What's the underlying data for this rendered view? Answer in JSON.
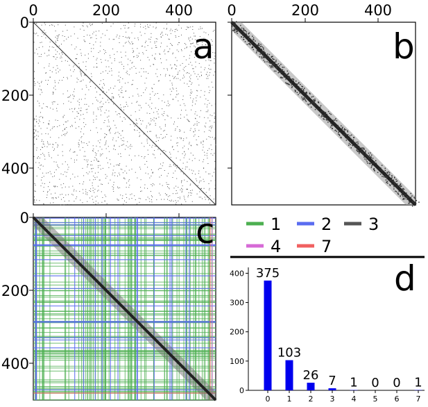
{
  "chart_data": [
    {
      "type": "heatmap",
      "panel_label": "a",
      "description": "sparse matrix, scattered points plus main diagonal",
      "size": 500,
      "xticks": [
        "0",
        "200",
        "400"
      ],
      "yticks": [
        "0",
        "200",
        "400"
      ],
      "xlim": [
        0,
        500
      ],
      "ylim": [
        500,
        0
      ]
    },
    {
      "type": "heatmap",
      "panel_label": "b",
      "description": "banded matrix, dense band along main diagonal",
      "size": 500,
      "xticks": [
        "0",
        "200",
        "400"
      ],
      "yticks": [],
      "xlim": [
        0,
        500
      ],
      "ylim": [
        500,
        0
      ]
    },
    {
      "type": "heatmap",
      "panel_label": "c",
      "size": 500,
      "yticks": [
        "0",
        "200",
        "400"
      ],
      "xlim": [
        0,
        500
      ],
      "ylim": [
        500,
        0
      ],
      "legend": [
        {
          "name": "1",
          "color": "#4caf50"
        },
        {
          "name": "2",
          "color": "#5a6cf0"
        },
        {
          "name": "3",
          "color": "#555555"
        },
        {
          "name": "4",
          "color": "#d66ad6"
        },
        {
          "name": "7",
          "color": "#f06060"
        }
      ]
    },
    {
      "type": "bar",
      "panel_label": "d",
      "categories": [
        "0",
        "1",
        "2",
        "3",
        "4",
        "5",
        "6",
        "7"
      ],
      "values": [
        375,
        103,
        26,
        7,
        1,
        0,
        0,
        1
      ],
      "data_labels": [
        "375",
        "103",
        "26",
        "7",
        "1",
        "0",
        "0",
        "1"
      ],
      "yticks": [
        "0",
        "100",
        "200",
        "300",
        "400"
      ],
      "ylim": [
        0,
        420
      ],
      "color": "#0000ee"
    }
  ]
}
